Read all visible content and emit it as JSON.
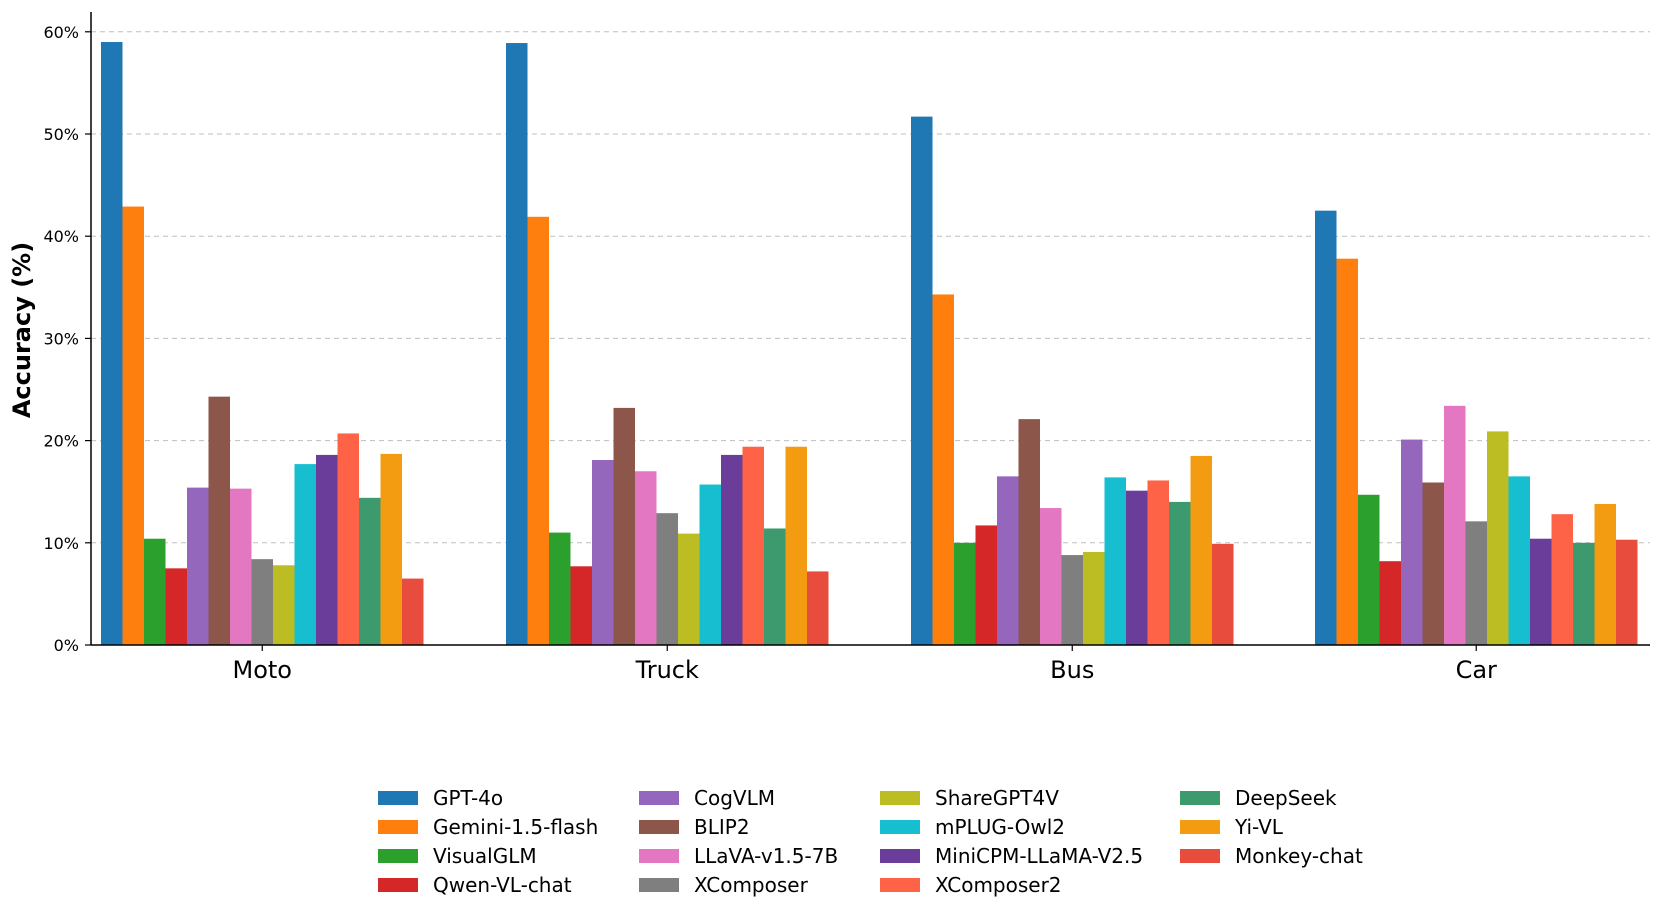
{
  "chart_data": {
    "type": "bar",
    "categories": [
      "Moto",
      "Truck",
      "Bus",
      "Car"
    ],
    "ylabel": "Accuracy (%)",
    "xlabel": "",
    "ylim": [
      0,
      62
    ],
    "yticks": [
      0,
      10,
      20,
      30,
      40,
      50,
      60
    ],
    "ytick_labels": [
      "0%",
      "10%",
      "20%",
      "30%",
      "40%",
      "50%",
      "60%"
    ],
    "grid": "horizontal dashed",
    "legend_position": "bottom-center",
    "series": [
      {
        "name": "GPT-4o",
        "color": "#1f77b4",
        "values": [
          59.0,
          58.9,
          51.7,
          42.5
        ]
      },
      {
        "name": "Gemini-1.5-flash",
        "color": "#ff7f0e",
        "values": [
          42.9,
          41.9,
          34.3,
          37.8
        ]
      },
      {
        "name": "VisualGLM",
        "color": "#2ca02c",
        "values": [
          10.4,
          11.0,
          10.0,
          14.7
        ]
      },
      {
        "name": "Qwen-VL-chat",
        "color": "#d62728",
        "values": [
          7.5,
          7.7,
          11.7,
          8.2
        ]
      },
      {
        "name": "CogVLM",
        "color": "#9467bd",
        "values": [
          15.4,
          18.1,
          16.5,
          20.1
        ]
      },
      {
        "name": "BLIP2",
        "color": "#8c564b",
        "values": [
          24.3,
          23.2,
          22.1,
          15.9
        ]
      },
      {
        "name": "LLaVA-v1.5-7B",
        "color": "#e377c2",
        "values": [
          15.3,
          17.0,
          13.4,
          23.4
        ]
      },
      {
        "name": "XComposer",
        "color": "#7f7f7f",
        "values": [
          8.4,
          12.9,
          8.8,
          12.1
        ]
      },
      {
        "name": "ShareGPT4V",
        "color": "#bcbd22",
        "values": [
          7.8,
          10.9,
          9.1,
          20.9
        ]
      },
      {
        "name": "mPLUG-Owl2",
        "color": "#17becf",
        "values": [
          17.7,
          15.7,
          16.4,
          16.5
        ]
      },
      {
        "name": "MiniCPM-LLaMA-V2.5",
        "color": "#6a3d9a",
        "values": [
          18.6,
          18.6,
          15.1,
          10.4
        ]
      },
      {
        "name": "XComposer2",
        "color": "#ff6347",
        "values": [
          20.7,
          19.4,
          16.1,
          12.8
        ]
      },
      {
        "name": "DeepSeek",
        "color": "#3c9a6e",
        "values": [
          14.4,
          11.4,
          14.0,
          10.0
        ]
      },
      {
        "name": "Yi-VL",
        "color": "#f39c12",
        "values": [
          18.7,
          19.4,
          18.5,
          13.8
        ]
      },
      {
        "name": "Monkey-chat",
        "color": "#e74c3c",
        "values": [
          6.5,
          7.2,
          9.9,
          10.3
        ]
      }
    ]
  }
}
